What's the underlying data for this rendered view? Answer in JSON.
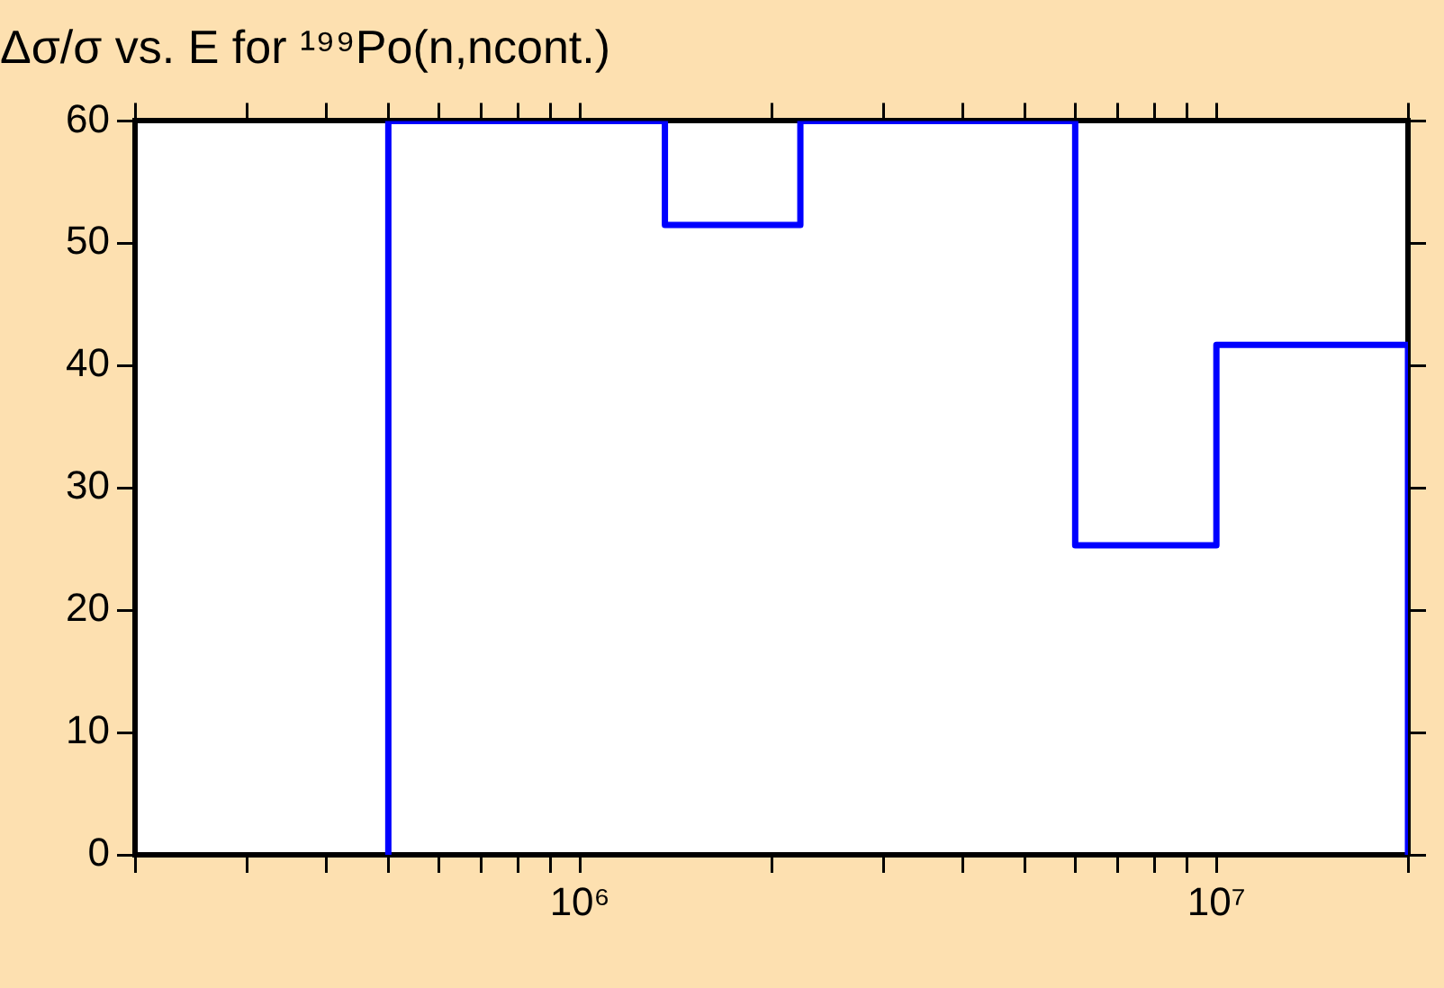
{
  "chart_data": {
    "type": "step",
    "title": "Δσ/σ vs. E for ¹⁹⁹Po(n,ncont.)",
    "x": [
      500000,
      500000,
      1360000,
      2220000,
      6000000,
      10000000,
      20000000,
      20000000
    ],
    "series": [
      {
        "color": "#0000ff",
        "values": [
          0,
          60,
          51.5,
          60,
          25.3,
          41.7,
          41.7,
          0
        ]
      }
    ],
    "log": "x",
    "xlim": [
      200000,
      20000000
    ],
    "xticks": [
      {
        "value": 200000,
        "label": null
      },
      {
        "value": 300000,
        "label": null
      },
      {
        "value": 400000,
        "label": null
      },
      {
        "value": 500000,
        "label": null
      },
      {
        "value": 600000,
        "label": null
      },
      {
        "value": 700000,
        "label": null
      },
      {
        "value": 800000,
        "label": null
      },
      {
        "value": 900000,
        "label": null
      },
      {
        "value": 1000000,
        "label": "10⁶"
      },
      {
        "value": 2000000,
        "label": null
      },
      {
        "value": 3000000,
        "label": null
      },
      {
        "value": 4000000,
        "label": null
      },
      {
        "value": 5000000,
        "label": null
      },
      {
        "value": 6000000,
        "label": null
      },
      {
        "value": 7000000,
        "label": null
      },
      {
        "value": 8000000,
        "label": null
      },
      {
        "value": 9000000,
        "label": null
      },
      {
        "value": 10000000,
        "label": "10⁷"
      },
      {
        "value": 20000000,
        "label": null
      }
    ],
    "ylim": [
      0,
      60
    ],
    "yticks": [
      0,
      10,
      20,
      30,
      40,
      50,
      60
    ],
    "grid": false,
    "legend": false,
    "marker": "none",
    "line_style": "solid"
  }
}
